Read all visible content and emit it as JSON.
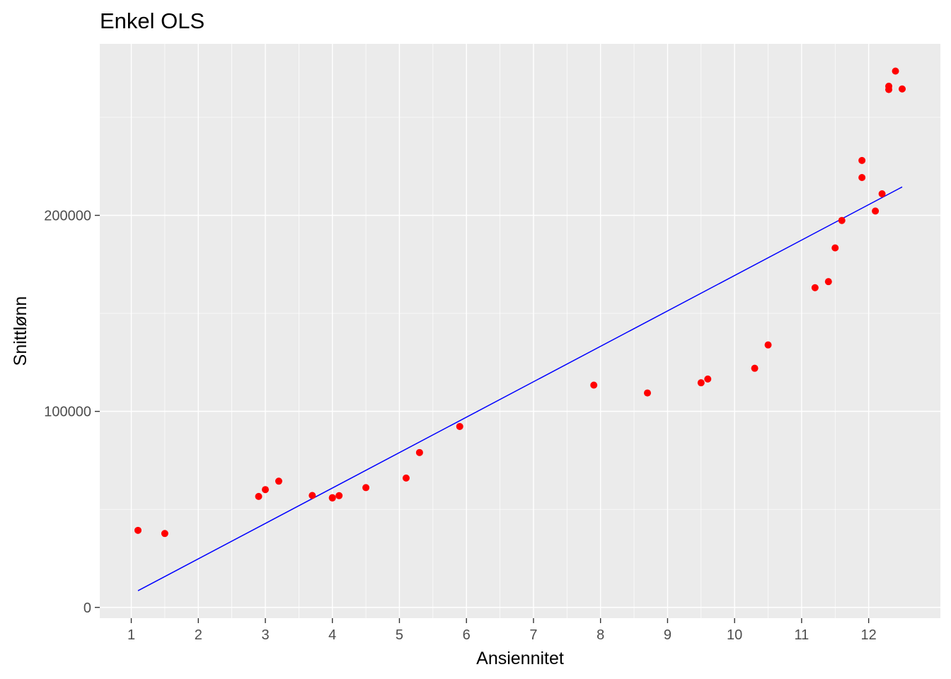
{
  "chart_data": {
    "type": "scatter",
    "title": "Enkel OLS",
    "xlabel": "Ansiennitet",
    "ylabel": "Snittlønn",
    "xlim": [
      0.53,
      13.07
    ],
    "ylim": [
      -5500,
      287500
    ],
    "x_ticks": [
      1,
      2,
      3,
      4,
      5,
      6,
      7,
      8,
      9,
      10,
      11,
      12
    ],
    "y_ticks": [
      0,
      100000,
      200000
    ],
    "y_tick_labels": [
      "0",
      "100000",
      "200000"
    ],
    "grid": true,
    "legend": "none",
    "points": {
      "color": "#ff0000",
      "x": [
        1.1,
        1.5,
        2.9,
        3.0,
        3.2,
        3.7,
        4.0,
        4.0,
        4.1,
        4.5,
        5.1,
        5.3,
        5.9,
        7.9,
        8.7,
        9.5,
        9.6,
        10.3,
        10.5,
        11.2,
        11.4,
        11.5,
        11.6,
        11.9,
        11.9,
        12.1,
        12.2,
        12.3,
        12.3,
        12.4,
        12.5
      ],
      "y": [
        39300,
        37700,
        56600,
        60100,
        64400,
        57100,
        56000,
        55800,
        57000,
        61100,
        66000,
        79000,
        92300,
        113400,
        109400,
        114600,
        116500,
        122000,
        133900,
        163100,
        166200,
        183400,
        197400,
        219300,
        228000,
        202200,
        211000,
        264200,
        265900,
        273600,
        264500
      ]
    },
    "fit_line": {
      "color": "#0000ff",
      "x": [
        1.1,
        12.5
      ],
      "y": [
        8500,
        214500
      ]
    }
  }
}
